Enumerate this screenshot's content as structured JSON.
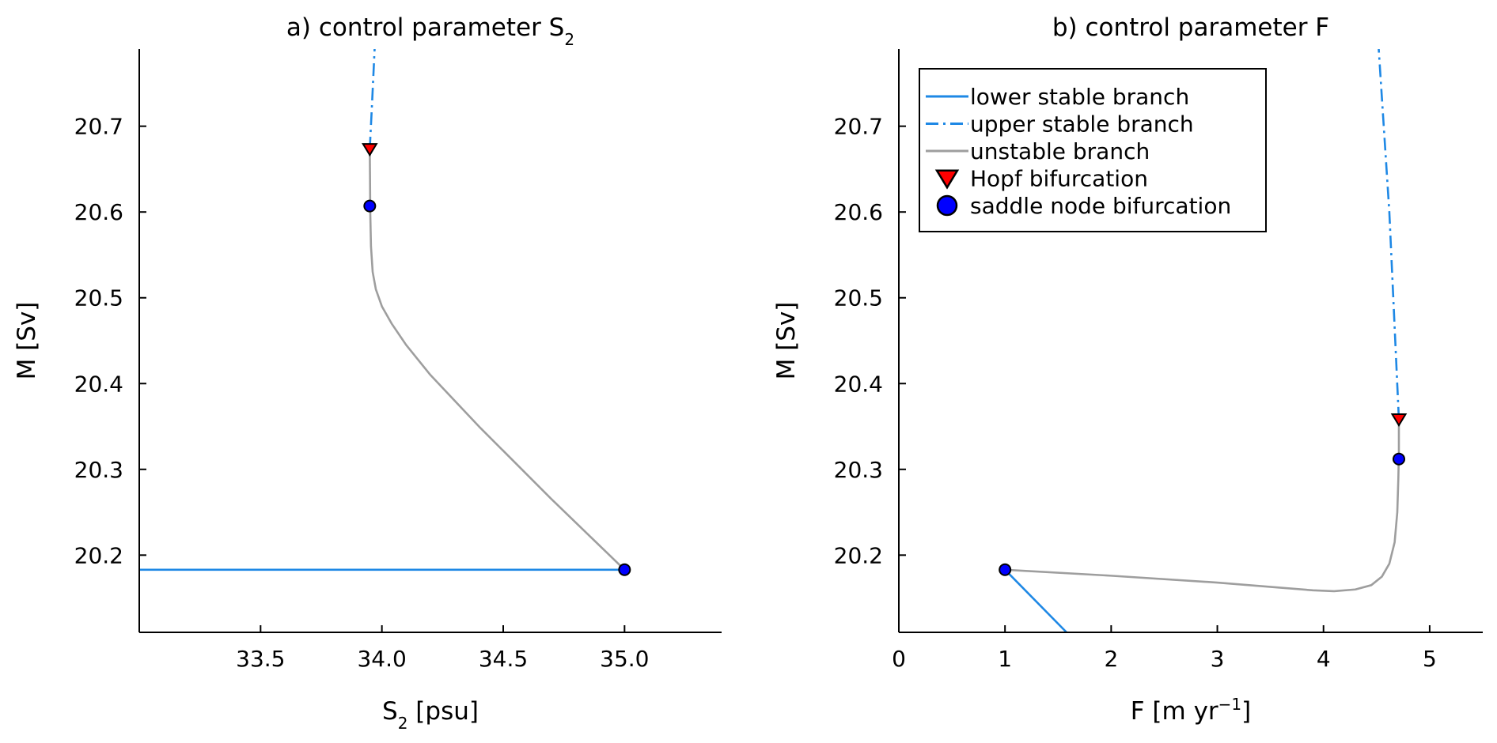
{
  "colors": {
    "lower_stable": "#1e88e5",
    "upper_stable": "#1e88e5",
    "unstable": "#9e9e9e",
    "hopf": "#ff0000",
    "saddle": "#0000ff",
    "axis": "#000000"
  },
  "chart_data": [
    {
      "type": "line",
      "title": "a) control parameter S",
      "title_sub": "2",
      "xlabel": "S",
      "xlabel_sub": "2",
      "xlabel_rest": " [psu]",
      "ylabel": "M [Sv]",
      "xlim": [
        33.0,
        35.4
      ],
      "ylim": [
        20.11,
        20.79
      ],
      "xticks": [
        {
          "value": 33.5,
          "label": "33.5"
        },
        {
          "value": 34.0,
          "label": "34.0"
        },
        {
          "value": 34.5,
          "label": "34.5"
        },
        {
          "value": 35.0,
          "label": "35.0"
        }
      ],
      "yticks": [
        {
          "value": 20.2,
          "label": "20.2"
        },
        {
          "value": 20.3,
          "label": "20.3"
        },
        {
          "value": 20.4,
          "label": "20.4"
        },
        {
          "value": 20.5,
          "label": "20.5"
        },
        {
          "value": 20.6,
          "label": "20.6"
        },
        {
          "value": 20.7,
          "label": "20.7"
        }
      ],
      "series": [
        {
          "key": "lower",
          "style": "solid",
          "x": [
            33.0,
            35.0
          ],
          "y": [
            20.183,
            20.183
          ]
        },
        {
          "key": "upper",
          "style": "dashdot",
          "x": [
            33.95,
            33.96,
            33.97
          ],
          "y": [
            20.673,
            20.73,
            20.79
          ]
        },
        {
          "key": "unstable",
          "style": "solid",
          "x": [
            35.0,
            34.7,
            34.4,
            34.2,
            34.1,
            34.04,
            34.0,
            33.975,
            33.962,
            33.955,
            33.952,
            33.951,
            33.95
          ],
          "y": [
            20.183,
            20.265,
            20.35,
            20.41,
            20.445,
            20.47,
            20.49,
            20.51,
            20.53,
            20.56,
            20.6,
            20.64,
            20.673
          ]
        }
      ],
      "markers": [
        {
          "key": "saddle",
          "shape": "circle",
          "x": 35.0,
          "y": 20.183
        },
        {
          "key": "saddle",
          "shape": "circle",
          "x": 33.95,
          "y": 20.607
        },
        {
          "key": "hopf",
          "shape": "triangle",
          "x": 33.95,
          "y": 20.673
        }
      ],
      "legend": null
    },
    {
      "type": "line",
      "title": "b) control parameter F",
      "title_sub": "",
      "xlabel": "F [m yr",
      "xlabel_sup": "−1",
      "xlabel_rest": "]",
      "ylabel": "M [Sv]",
      "xlim": [
        0,
        5.5
      ],
      "ylim": [
        20.11,
        20.79
      ],
      "xticks": [
        {
          "value": 0,
          "label": "0"
        },
        {
          "value": 1,
          "label": "1"
        },
        {
          "value": 2,
          "label": "2"
        },
        {
          "value": 3,
          "label": "3"
        },
        {
          "value": 4,
          "label": "4"
        },
        {
          "value": 5,
          "label": "5"
        }
      ],
      "yticks": [
        {
          "value": 20.2,
          "label": "20.2"
        },
        {
          "value": 20.3,
          "label": "20.3"
        },
        {
          "value": 20.4,
          "label": "20.4"
        },
        {
          "value": 20.5,
          "label": "20.5"
        },
        {
          "value": 20.6,
          "label": "20.6"
        },
        {
          "value": 20.7,
          "label": "20.7"
        }
      ],
      "series": [
        {
          "key": "lower",
          "style": "solid",
          "x": [
            1.0,
            1.58
          ],
          "y": [
            20.183,
            20.11
          ]
        },
        {
          "key": "upper",
          "style": "dashdot",
          "x": [
            4.71,
            4.62,
            4.52
          ],
          "y": [
            20.358,
            20.6,
            20.79
          ]
        },
        {
          "key": "unstable",
          "style": "solid",
          "x": [
            1.0,
            2.0,
            3.0,
            3.6,
            3.9,
            4.1,
            4.3,
            4.45,
            4.55,
            4.62,
            4.67,
            4.695,
            4.705,
            4.71,
            4.71
          ],
          "y": [
            20.183,
            20.176,
            20.168,
            20.162,
            20.159,
            20.158,
            20.16,
            20.165,
            20.175,
            20.19,
            20.215,
            20.25,
            20.29,
            20.32,
            20.358
          ]
        }
      ],
      "markers": [
        {
          "key": "saddle",
          "shape": "circle",
          "x": 1.0,
          "y": 20.183
        },
        {
          "key": "saddle",
          "shape": "circle",
          "x": 4.71,
          "y": 20.312
        },
        {
          "key": "hopf",
          "shape": "triangle",
          "x": 4.71,
          "y": 20.358
        }
      ],
      "legend": {
        "placement": "top-left",
        "entries": [
          {
            "key": "lower",
            "label": "lower stable branch"
          },
          {
            "key": "upper",
            "label": "upper stable branch"
          },
          {
            "key": "unstable",
            "label": "unstable branch"
          },
          {
            "key": "hopf",
            "label": "Hopf bifurcation"
          },
          {
            "key": "saddle",
            "label": "saddle node bifurcation"
          }
        ]
      }
    }
  ]
}
